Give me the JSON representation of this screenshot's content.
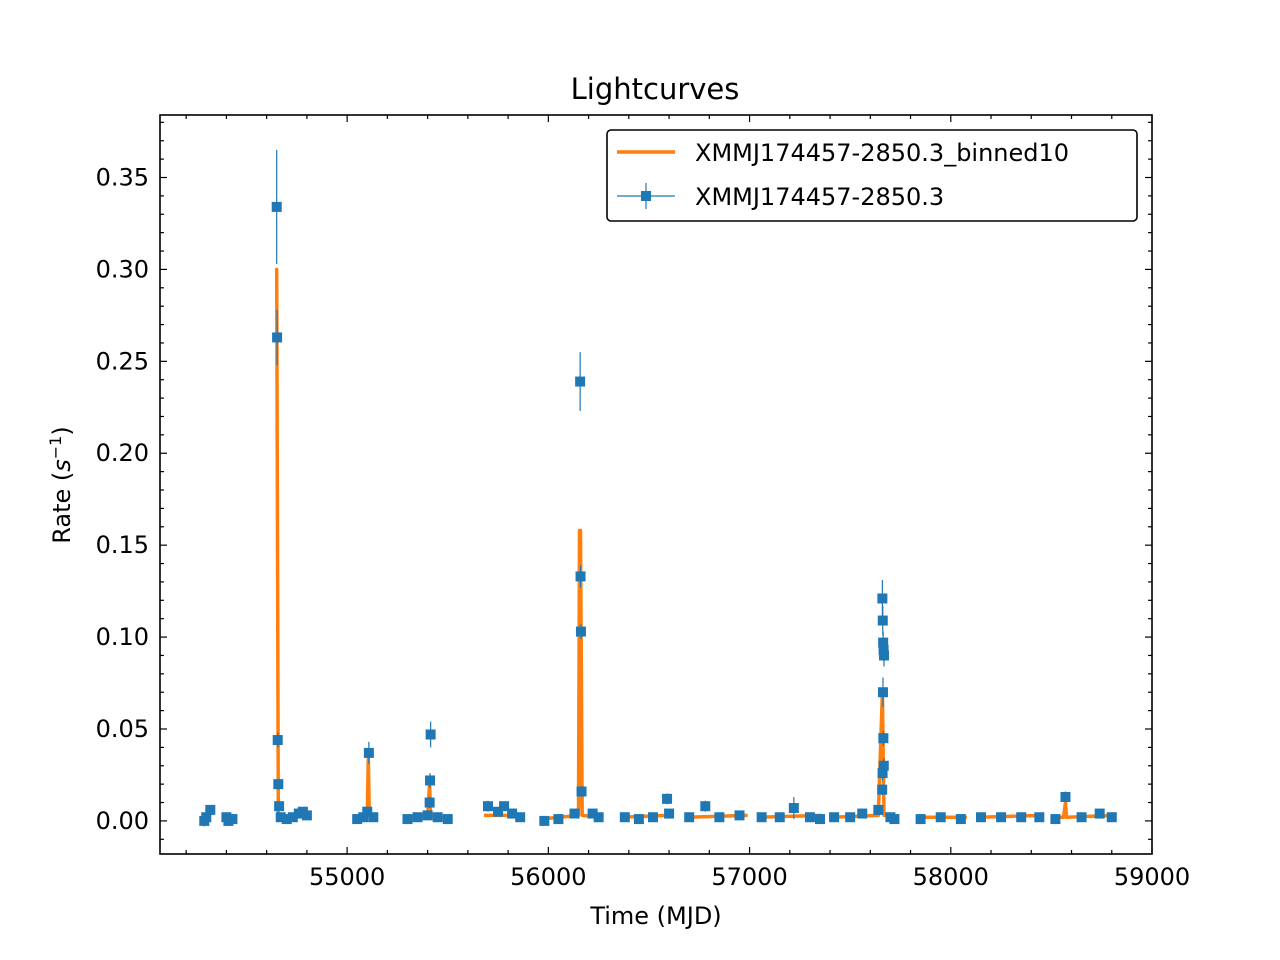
{
  "chart_data": {
    "type": "scatter",
    "title": "Lightcurves",
    "xlabel": "Time (MJD)",
    "ylabel_prefix": "Rate (",
    "ylabel_var": "s",
    "ylabel_exp": "−1",
    "ylabel_suffix": ")",
    "xlim": [
      54070,
      59000
    ],
    "ylim": [
      -0.018,
      0.384
    ],
    "xticks": [
      55000,
      56000,
      57000,
      58000,
      59000
    ],
    "xtick_labels": [
      "55000",
      "56000",
      "57000",
      "58000",
      "59000"
    ],
    "yticks": [
      0.0,
      0.05,
      0.1,
      0.15,
      0.2,
      0.25,
      0.3,
      0.35
    ],
    "ytick_labels": [
      "0.00",
      "0.05",
      "0.10",
      "0.15",
      "0.20",
      "0.25",
      "0.30",
      "0.35"
    ],
    "legend_position": "top-right",
    "grid": false,
    "series": [
      {
        "name": "XMMJ174457-2850.3_binned10",
        "style": "step",
        "color": "#ff7f0e",
        "segments": [
          [
            [
              54290,
              0.001
            ],
            [
              54320,
              0.003
            ]
          ],
          [
            [
              54400,
              0.001
            ],
            [
              54430,
              0.001
            ]
          ],
          [
            [
              54645,
              0.299
            ],
            [
              54650,
              0.299
            ],
            [
              54650,
              0.3
            ],
            [
              54658,
              0.003
            ],
            [
              54690,
              0.002
            ],
            [
              54740,
              0.003
            ],
            [
              54780,
              0.003
            ],
            [
              54800,
              0.002
            ]
          ],
          [
            [
              55050,
              0.002
            ],
            [
              55100,
              0.003
            ],
            [
              55105,
              0.035
            ],
            [
              55110,
              0.003
            ],
            [
              55140,
              0.002
            ]
          ],
          [
            [
              55300,
              0.001
            ],
            [
              55400,
              0.003
            ],
            [
              55410,
              0.02
            ],
            [
              55415,
              0.003
            ],
            [
              55510,
              0.001
            ]
          ],
          [
            [
              55680,
              0.003
            ],
            [
              55860,
              0.003
            ]
          ],
          [
            [
              55960,
              0.001
            ],
            [
              56150,
              0.003
            ],
            [
              56155,
              0.158
            ],
            [
              56160,
              0.158
            ],
            [
              56168,
              0.003
            ],
            [
              56260,
              0.002
            ]
          ],
          [
            [
              56360,
              0.002
            ],
            [
              56600,
              0.003
            ]
          ],
          [
            [
              56690,
              0.002
            ],
            [
              56990,
              0.003
            ]
          ],
          [
            [
              57050,
              0.002
            ],
            [
              57360,
              0.003
            ]
          ],
          [
            [
              57410,
              0.002
            ],
            [
              57640,
              0.003
            ],
            [
              57660,
              0.07
            ],
            [
              57668,
              0.003
            ],
            [
              57730,
              0.002
            ]
          ],
          [
            [
              57840,
              0.002
            ],
            [
              58080,
              0.002
            ]
          ],
          [
            [
              58140,
              0.002
            ],
            [
              58450,
              0.003
            ]
          ],
          [
            [
              58500,
              0.002
            ],
            [
              58560,
              0.002
            ],
            [
              58570,
              0.01
            ],
            [
              58575,
              0.002
            ],
            [
              58810,
              0.003
            ]
          ]
        ]
      },
      {
        "name": "XMMJ174457-2850.3",
        "style": "errorbar",
        "color": "#1f77b4",
        "points": [
          [
            54290,
            0.0,
            0.003
          ],
          [
            54300,
            0.002,
            0.003
          ],
          [
            54320,
            0.006,
            0.002
          ],
          [
            54400,
            0.002,
            0.002
          ],
          [
            54410,
            0.0,
            0.002
          ],
          [
            54430,
            0.001,
            0.002
          ],
          [
            54650,
            0.334,
            0.031
          ],
          [
            54652,
            0.263,
            0.015
          ],
          [
            54655,
            0.044,
            0.004
          ],
          [
            54658,
            0.02,
            0.003
          ],
          [
            54662,
            0.008,
            0.002
          ],
          [
            54670,
            0.002,
            0.002
          ],
          [
            54700,
            0.001,
            0.002
          ],
          [
            54730,
            0.002,
            0.002
          ],
          [
            54760,
            0.004,
            0.002
          ],
          [
            54780,
            0.005,
            0.002
          ],
          [
            54800,
            0.003,
            0.002
          ],
          [
            55050,
            0.001,
            0.002
          ],
          [
            55080,
            0.002,
            0.002
          ],
          [
            55100,
            0.005,
            0.002
          ],
          [
            55108,
            0.037,
            0.006
          ],
          [
            55130,
            0.002,
            0.002
          ],
          [
            55300,
            0.001,
            0.002
          ],
          [
            55350,
            0.002,
            0.002
          ],
          [
            55400,
            0.003,
            0.002
          ],
          [
            55410,
            0.01,
            0.003
          ],
          [
            55412,
            0.022,
            0.004
          ],
          [
            55415,
            0.047,
            0.007
          ],
          [
            55450,
            0.002,
            0.002
          ],
          [
            55500,
            0.001,
            0.002
          ],
          [
            55700,
            0.008,
            0.003
          ],
          [
            55750,
            0.005,
            0.002
          ],
          [
            55780,
            0.008,
            0.002
          ],
          [
            55820,
            0.004,
            0.002
          ],
          [
            55860,
            0.002,
            0.002
          ],
          [
            55980,
            0.0,
            0.002
          ],
          [
            56050,
            0.001,
            0.002
          ],
          [
            56130,
            0.004,
            0.002
          ],
          [
            56158,
            0.239,
            0.016
          ],
          [
            56160,
            0.133,
            0.006
          ],
          [
            56162,
            0.103,
            0.004
          ],
          [
            56165,
            0.016,
            0.003
          ],
          [
            56220,
            0.004,
            0.002
          ],
          [
            56250,
            0.002,
            0.002
          ],
          [
            56380,
            0.002,
            0.002
          ],
          [
            56450,
            0.001,
            0.002
          ],
          [
            56520,
            0.002,
            0.002
          ],
          [
            56590,
            0.012,
            0.003
          ],
          [
            56600,
            0.004,
            0.002
          ],
          [
            56700,
            0.002,
            0.002
          ],
          [
            56780,
            0.008,
            0.003
          ],
          [
            56850,
            0.002,
            0.002
          ],
          [
            56950,
            0.003,
            0.002
          ],
          [
            57060,
            0.002,
            0.002
          ],
          [
            57150,
            0.002,
            0.002
          ],
          [
            57220,
            0.007,
            0.006
          ],
          [
            57300,
            0.002,
            0.002
          ],
          [
            57350,
            0.001,
            0.002
          ],
          [
            57420,
            0.002,
            0.002
          ],
          [
            57500,
            0.002,
            0.002
          ],
          [
            57560,
            0.004,
            0.002
          ],
          [
            57640,
            0.006,
            0.002
          ],
          [
            57660,
            0.121,
            0.01
          ],
          [
            57662,
            0.109,
            0.008
          ],
          [
            57664,
            0.097,
            0.006
          ],
          [
            57666,
            0.093,
            0.006
          ],
          [
            57668,
            0.09,
            0.006
          ],
          [
            57663,
            0.07,
            0.008
          ],
          [
            57665,
            0.045,
            0.004
          ],
          [
            57667,
            0.03,
            0.004
          ],
          [
            57661,
            0.026,
            0.004
          ],
          [
            57659,
            0.017,
            0.003
          ],
          [
            57700,
            0.002,
            0.002
          ],
          [
            57720,
            0.001,
            0.002
          ],
          [
            57850,
            0.001,
            0.002
          ],
          [
            57950,
            0.002,
            0.002
          ],
          [
            58050,
            0.001,
            0.002
          ],
          [
            58150,
            0.002,
            0.002
          ],
          [
            58250,
            0.002,
            0.002
          ],
          [
            58350,
            0.002,
            0.002
          ],
          [
            58440,
            0.002,
            0.002
          ],
          [
            58520,
            0.001,
            0.002
          ],
          [
            58570,
            0.013,
            0.003
          ],
          [
            58650,
            0.002,
            0.002
          ],
          [
            58740,
            0.004,
            0.002
          ],
          [
            58800,
            0.002,
            0.002
          ]
        ]
      }
    ]
  }
}
